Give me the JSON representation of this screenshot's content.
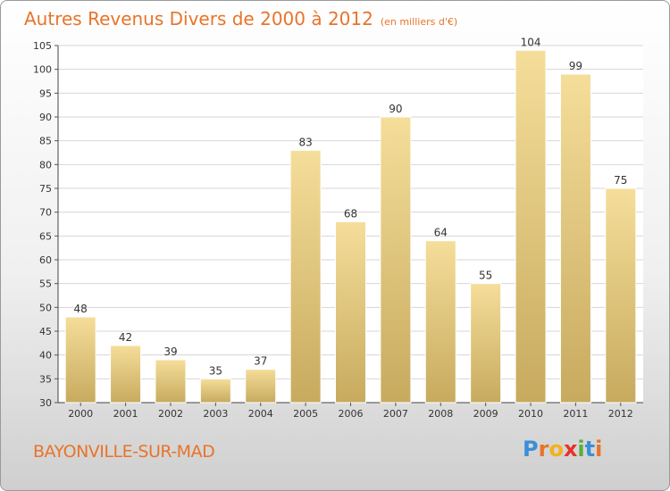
{
  "title": "Autres Revenus Divers de 2000 à 2012",
  "unit": "(en milliers d'€)",
  "place": "BAYONVILLE-SUR-MAD",
  "brand": {
    "letters": [
      "P",
      "r",
      "o",
      "x",
      "i",
      "t",
      "i"
    ],
    "colors": [
      "#3b8fd8",
      "#e8742a",
      "#f2b21b",
      "#e8322a",
      "#5aae3a",
      "#3b8fd8",
      "#e8742a"
    ]
  },
  "colors": {
    "bar_top": "#f5de9a",
    "bar_bottom": "#c7aa5e",
    "title": "#e8742a"
  },
  "chart_data": {
    "type": "bar",
    "title": "Autres Revenus Divers de 2000 à 2012",
    "subtitle": "(en milliers d'€)",
    "categories": [
      "2000",
      "2001",
      "2002",
      "2003",
      "2004",
      "2005",
      "2006",
      "2007",
      "2008",
      "2009",
      "2010",
      "2011",
      "2012"
    ],
    "values": [
      48,
      42,
      39,
      35,
      37,
      83,
      68,
      90,
      64,
      55,
      104,
      99,
      75
    ],
    "ylim": [
      30,
      105
    ],
    "yticks": [
      30,
      35,
      40,
      45,
      50,
      55,
      60,
      65,
      70,
      75,
      80,
      85,
      90,
      95,
      100,
      105
    ],
    "grid": true,
    "xlabel": "",
    "ylabel": ""
  }
}
